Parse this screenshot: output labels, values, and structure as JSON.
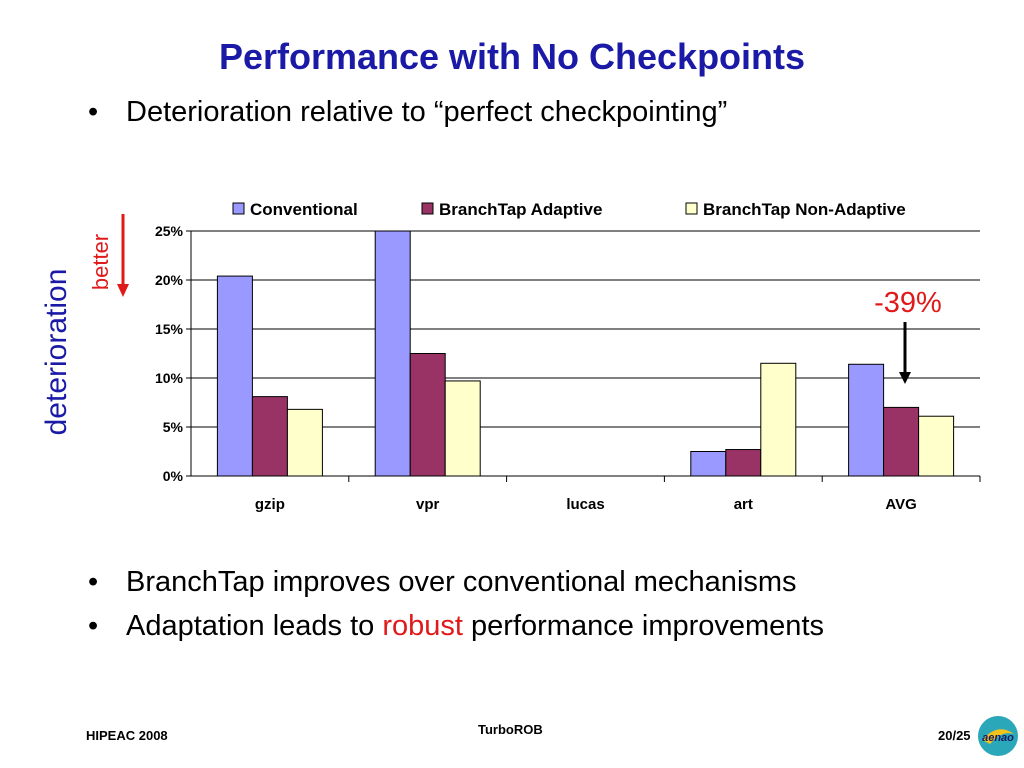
{
  "title": "Performance with No Checkpoints",
  "bullets_top": [
    "Deterioration relative to “perfect checkpointing”"
  ],
  "bullets_bottom": [
    {
      "before": "BranchTap improves over conventional mechanisms",
      "highlight": "",
      "after": ""
    },
    {
      "before": "Adaptation leads to ",
      "highlight": "robust",
      "after": " performance improvements"
    }
  ],
  "bullet_glyph": "•",
  "side_label": "deterioration",
  "better_label": "better",
  "annotation": "-39%",
  "footer": {
    "left": "HIPEAC 2008",
    "center": "TurboROB",
    "right": "20/25",
    "logo_text": "aenao"
  },
  "colors": {
    "title": "#1a1aa6",
    "accent_red": "#e01a1a",
    "conventional": "#9999ff",
    "adaptive": "#993366",
    "non_adaptive": "#ffffcc"
  },
  "chart_data": {
    "type": "bar",
    "categories": [
      "gzip",
      "vpr",
      "lucas",
      "art",
      "AVG"
    ],
    "series": [
      {
        "name": "Conventional",
        "values": [
          20.4,
          25,
          0,
          2.5,
          11.4
        ],
        "color": "#9999ff"
      },
      {
        "name": "BranchTap Adaptive",
        "values": [
          8.1,
          12.5,
          0,
          2.7,
          7.0
        ],
        "color": "#993366"
      },
      {
        "name": "BranchTap Non-Adaptive",
        "values": [
          6.8,
          9.7,
          0,
          11.5,
          6.1
        ],
        "color": "#ffffcc"
      }
    ],
    "ylim": [
      0,
      25
    ],
    "yticks": [
      "0%",
      "5%",
      "10%",
      "15%",
      "20%",
      "25%"
    ],
    "ytick_values": [
      0,
      5,
      10,
      15,
      20,
      25
    ],
    "grid": true,
    "legend_position": "top"
  }
}
